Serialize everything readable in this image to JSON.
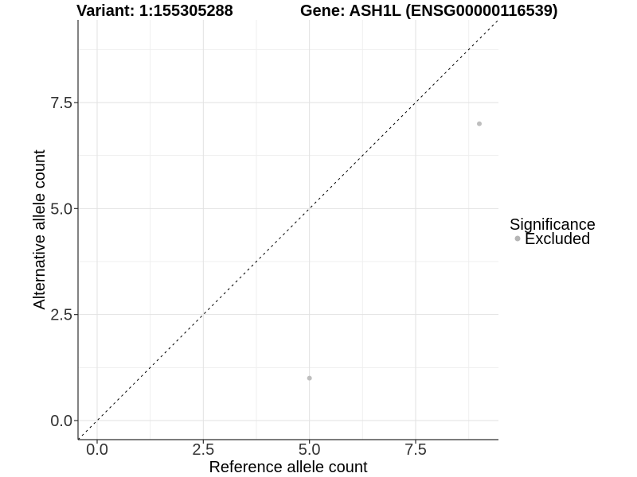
{
  "chart_data": {
    "type": "scatter",
    "title_left": "Variant: 1:155305288",
    "title_right": "Gene: ASH1L (ENSG00000116539)",
    "xlabel": "Reference allele count",
    "ylabel": "Alternative allele count",
    "xlim": [
      -0.45,
      9.45
    ],
    "ylim": [
      -0.45,
      9.45
    ],
    "x_ticks": [
      {
        "value": 0,
        "label": "0.0"
      },
      {
        "value": 2.5,
        "label": "2.5"
      },
      {
        "value": 5,
        "label": "5.0"
      },
      {
        "value": 7.5,
        "label": "7.5"
      }
    ],
    "y_ticks": [
      {
        "value": 0,
        "label": "0.0"
      },
      {
        "value": 2.5,
        "label": "2.5"
      },
      {
        "value": 5,
        "label": "5.0"
      },
      {
        "value": 7.5,
        "label": "7.5"
      }
    ],
    "grid": {
      "major": [
        0,
        2.5,
        5,
        7.5
      ],
      "minor": [
        1.25,
        3.75,
        6.25,
        8.75
      ],
      "major_color": "#e2e2e2",
      "minor_color": "#efefef"
    },
    "identity_line": {
      "style": "dashed",
      "slope": 1,
      "intercept": 0,
      "color": "#000000"
    },
    "series": [
      {
        "name": "Excluded",
        "color": "#bebebe",
        "point_radius": 3,
        "points": [
          {
            "x": 5,
            "y": 1
          },
          {
            "x": 9,
            "y": 7
          }
        ]
      }
    ],
    "legend": {
      "position": "right",
      "title": "Significance",
      "entries": [
        {
          "label": "Excluded",
          "color": "#b5b5b5"
        }
      ]
    },
    "colors": {
      "axis": "#2f2f2f",
      "tick": "#2f2f2f",
      "background": "#ffffff"
    }
  }
}
